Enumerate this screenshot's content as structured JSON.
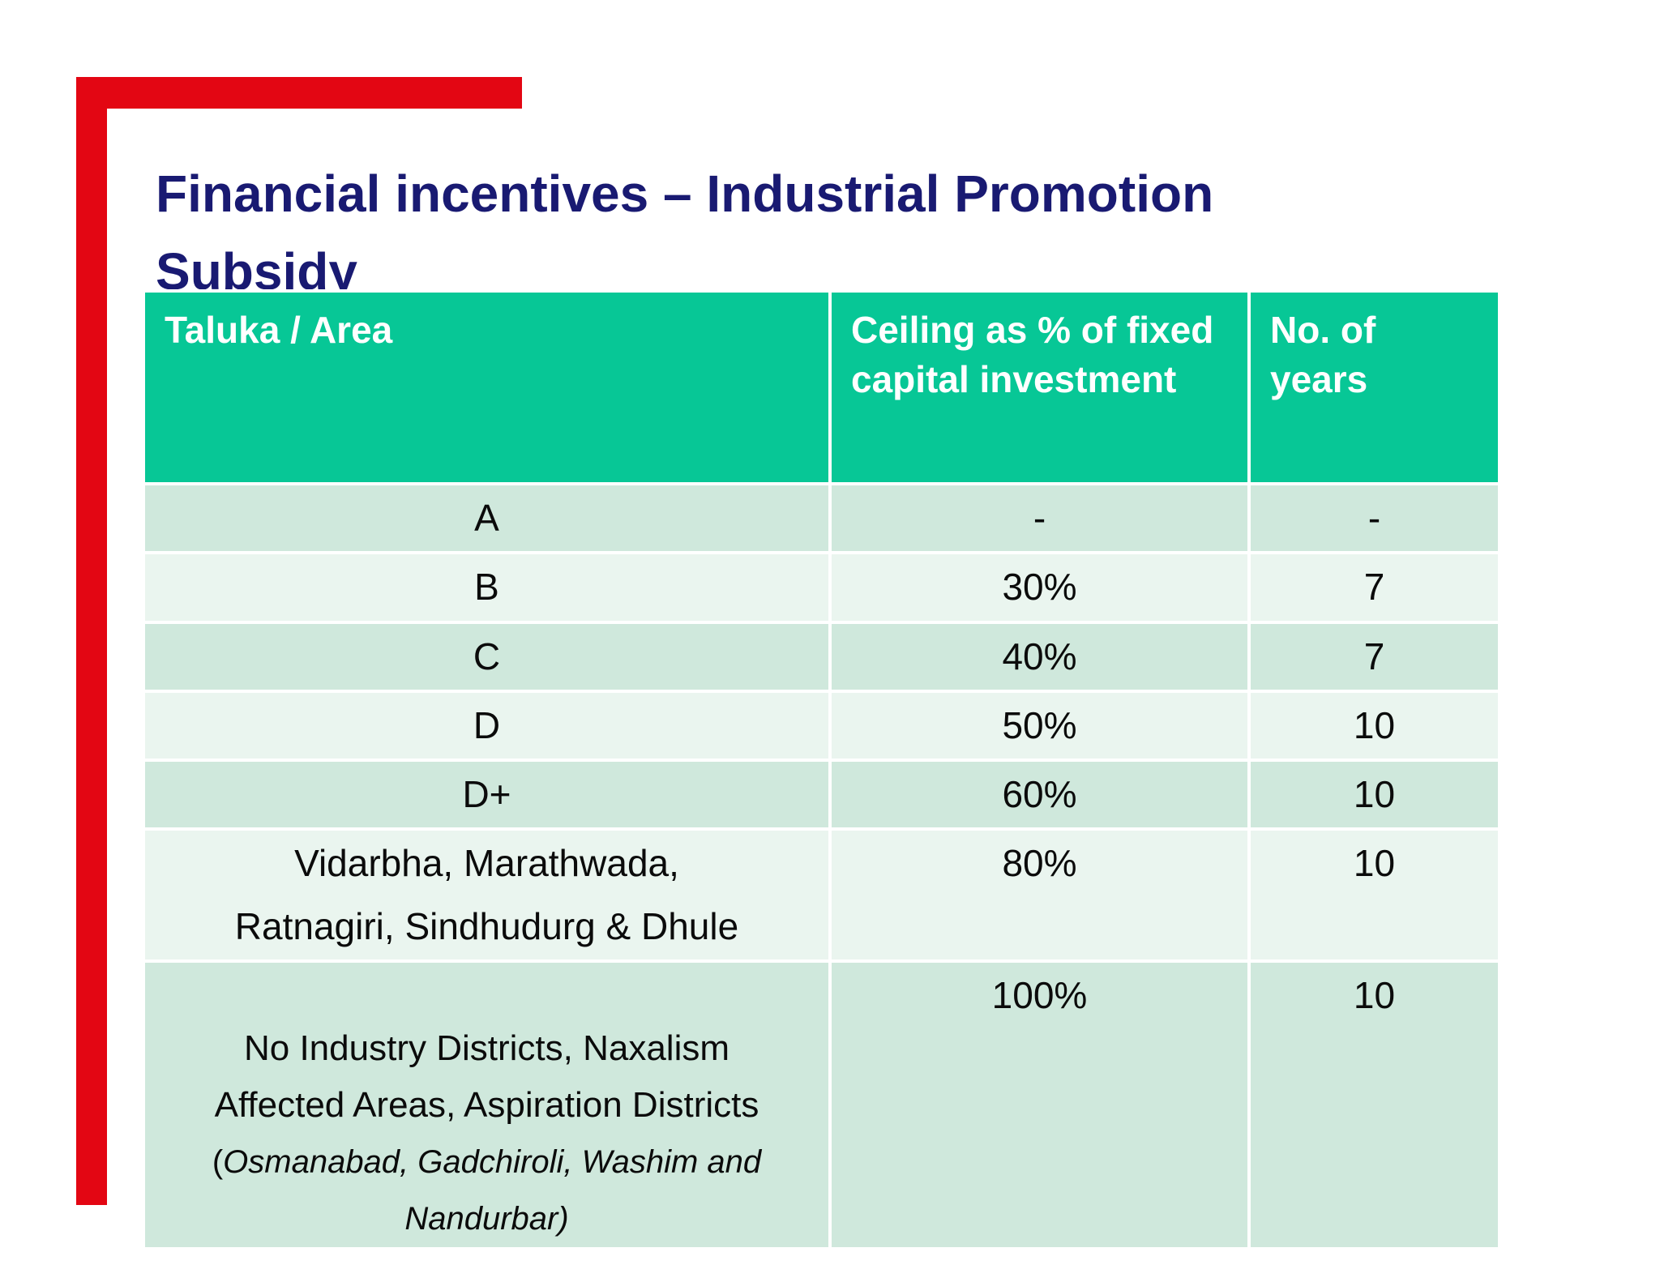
{
  "slide": {
    "title": "Financial incentives – Industrial Promotion\nSubsidy",
    "title_color": "#191a72",
    "accent_color": "#e30613"
  },
  "table": {
    "header": {
      "col1": "Taluka / Area",
      "col2": "Ceiling as % of fixed capital investment",
      "col3": "No. of years",
      "bg_color": "#07c796",
      "text_color": "#ffffff"
    },
    "row_colors": {
      "odd": "#cfe8dc",
      "even": "#eaf5ef"
    },
    "rows": [
      {
        "area": "A",
        "ceiling": "-",
        "years": "-"
      },
      {
        "area": "B",
        "ceiling": "30%",
        "years": "7"
      },
      {
        "area": "C",
        "ceiling": "40%",
        "years": "7"
      },
      {
        "area": "D",
        "ceiling": "50%",
        "years": "10"
      },
      {
        "area": "D+",
        "ceiling": "60%",
        "years": "10"
      },
      {
        "area": "Vidarbha, Marathwada,\nRatnagiri, Sindhudurg & Dhule",
        "ceiling": "80%",
        "years": "10"
      },
      {
        "area": "No Industry Districts, Naxalism\nAffected Areas, Aspiration Districts",
        "area_paren": "(",
        "area_italic": "Osmanabad, Gadchiroli, Washim and\nNandurbar)",
        "ceiling": "100%",
        "years": "10"
      }
    ]
  }
}
